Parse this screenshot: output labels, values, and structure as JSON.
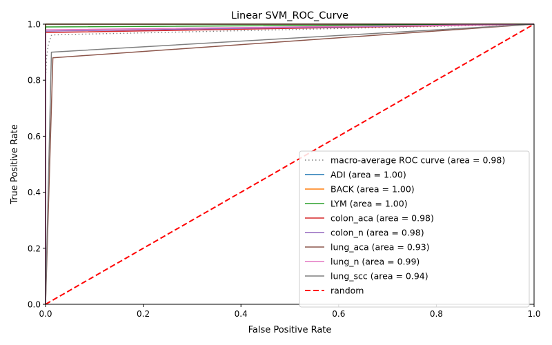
{
  "chart_data": {
    "type": "line",
    "title": "Linear SVM_ROC_Curve",
    "xlabel": "False Positive Rate",
    "ylabel": "True Positive Rate",
    "xlim": [
      0.0,
      1.0
    ],
    "ylim": [
      0.0,
      1.0
    ],
    "xticks": [
      "0.0",
      "0.2",
      "0.4",
      "0.6",
      "0.8",
      "1.0"
    ],
    "yticks": [
      "0.0",
      "0.2",
      "0.4",
      "0.6",
      "0.8",
      "1.0"
    ],
    "grid": false,
    "legend_position": "lower-right",
    "series": [
      {
        "name": "macro-average ROC curve (area = 0.98)",
        "color": "#7f7f7f",
        "style": "dotted",
        "x": [
          0.0,
          0.0,
          0.002,
          0.006,
          0.012,
          0.02,
          1.0
        ],
        "y": [
          0.0,
          0.8,
          0.88,
          0.93,
          0.96,
          0.962,
          1.0
        ]
      },
      {
        "name": "ADI (area = 1.00)",
        "color": "#1f77b4",
        "style": "solid",
        "x": [
          0.0,
          0.0,
          1.0
        ],
        "y": [
          0.0,
          1.0,
          1.0
        ]
      },
      {
        "name": "BACK (area = 1.00)",
        "color": "#ff7f0e",
        "style": "solid",
        "x": [
          0.0,
          0.0,
          1.0
        ],
        "y": [
          0.0,
          1.0,
          1.0
        ]
      },
      {
        "name": "LYM (area = 1.00)",
        "color": "#2ca02c",
        "style": "solid",
        "x": [
          0.0,
          0.0,
          0.01,
          1.0
        ],
        "y": [
          0.0,
          0.99,
          0.99,
          1.0
        ]
      },
      {
        "name": "colon_aca (area = 0.98)",
        "color": "#d62728",
        "style": "solid",
        "x": [
          0.0,
          0.0,
          0.005,
          1.0
        ],
        "y": [
          0.0,
          0.97,
          0.97,
          1.0
        ]
      },
      {
        "name": "colon_n (area = 0.98)",
        "color": "#9467bd",
        "style": "solid",
        "x": [
          0.0,
          0.0,
          0.005,
          1.0
        ],
        "y": [
          0.0,
          0.975,
          0.975,
          1.0
        ]
      },
      {
        "name": "lung_aca (area = 0.93)",
        "color": "#8c564b",
        "style": "solid",
        "x": [
          0.0,
          0.015,
          1.0
        ],
        "y": [
          0.0,
          0.88,
          1.0
        ]
      },
      {
        "name": "lung_n (area = 0.99)",
        "color": "#e377c2",
        "style": "solid",
        "x": [
          0.0,
          0.0,
          0.005,
          1.0
        ],
        "y": [
          0.0,
          0.98,
          0.98,
          1.0
        ]
      },
      {
        "name": "lung_scc (area = 0.94)",
        "color": "#7f7f7f",
        "style": "solid",
        "x": [
          0.0,
          0.012,
          1.0
        ],
        "y": [
          0.0,
          0.9,
          1.0
        ]
      },
      {
        "name": "random",
        "color": "#ff0000",
        "style": "dashed",
        "x": [
          0.0,
          1.0
        ],
        "y": [
          0.0,
          1.0
        ]
      }
    ]
  }
}
